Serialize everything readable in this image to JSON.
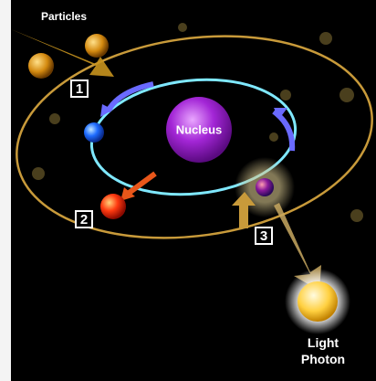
{
  "particles": "Particles",
  "nucleus": "Nucleus",
  "steps": [
    "1",
    "2",
    "3"
  ],
  "photon": [
    "Light",
    "Photon"
  ]
}
